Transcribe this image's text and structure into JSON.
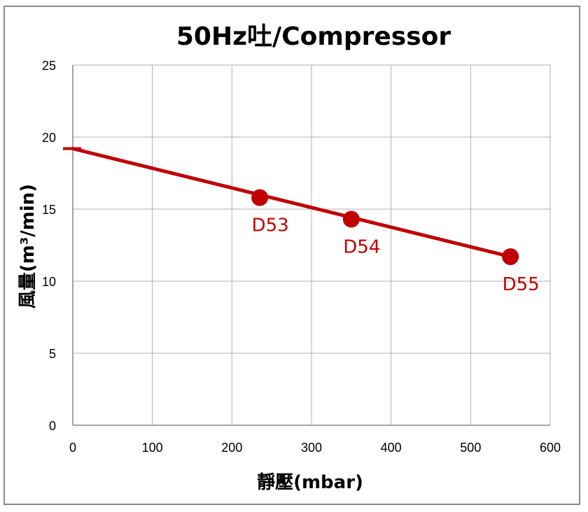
{
  "chart_data": {
    "type": "line",
    "title": "50Hz吐/Compressor",
    "xlabel": "靜壓(mbar)",
    "ylabel": "風量(m³/min)",
    "xlim": [
      0,
      600
    ],
    "ylim": [
      0,
      25
    ],
    "xticks": [
      0,
      100,
      200,
      300,
      400,
      500,
      600
    ],
    "yticks": [
      0,
      5,
      10,
      15,
      20,
      25
    ],
    "grid": true,
    "series": [
      {
        "color": "#c00000",
        "line": {
          "x": [
            0,
            550
          ],
          "y": [
            19.2,
            11.7
          ]
        },
        "points": [
          {
            "label": "D53",
            "x": 235,
            "y": 15.8
          },
          {
            "label": "D54",
            "x": 350,
            "y": 14.3
          },
          {
            "label": "D55",
            "x": 550,
            "y": 11.7
          }
        ]
      }
    ]
  }
}
